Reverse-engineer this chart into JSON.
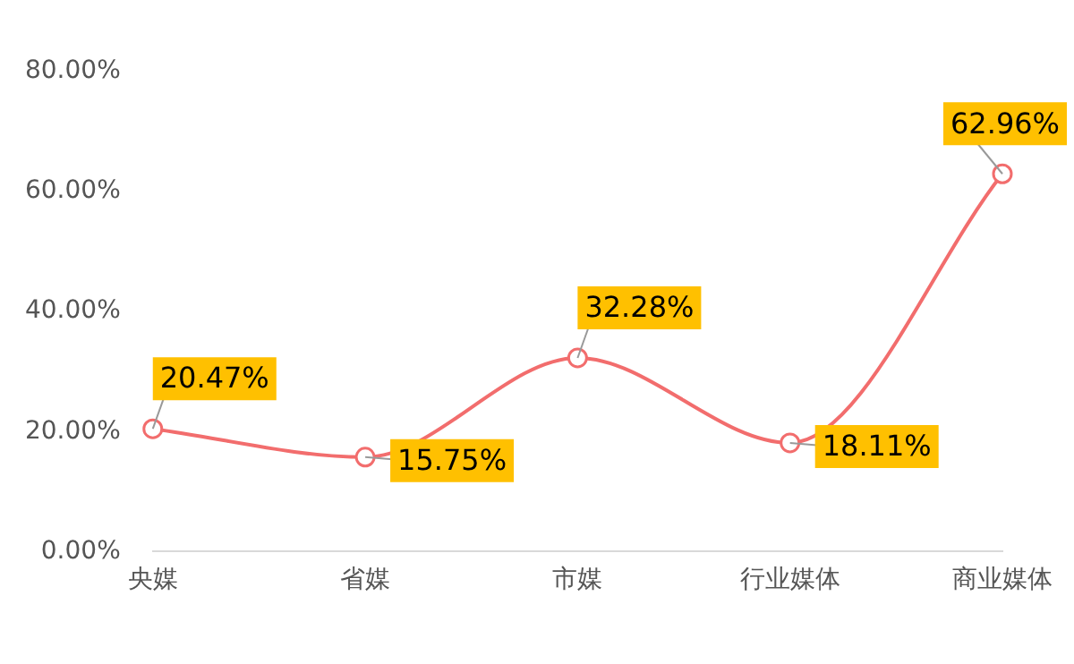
{
  "chart_data": {
    "type": "line",
    "categories": [
      "央媒",
      "省媒",
      "市媒",
      "行业媒体",
      "商业媒体"
    ],
    "series": [
      {
        "color": "#f26d6d",
        "values": [
          20.47,
          15.75,
          32.28,
          18.11,
          62.96
        ],
        "value_labels": [
          "20.47%",
          "15.75%",
          "32.28%",
          "18.11%",
          "62.96%"
        ]
      }
    ],
    "ylim": [
      0,
      80
    ],
    "yticks": [
      {
        "value": 0,
        "label": "0.00%"
      },
      {
        "value": 20,
        "label": "20.00%"
      },
      {
        "value": 40,
        "label": "40.00%"
      },
      {
        "value": 60,
        "label": "60.00%"
      },
      {
        "value": 80,
        "label": "80.00%"
      }
    ],
    "grid": false,
    "legend": false,
    "marker": "circle",
    "line_style": "solid"
  }
}
